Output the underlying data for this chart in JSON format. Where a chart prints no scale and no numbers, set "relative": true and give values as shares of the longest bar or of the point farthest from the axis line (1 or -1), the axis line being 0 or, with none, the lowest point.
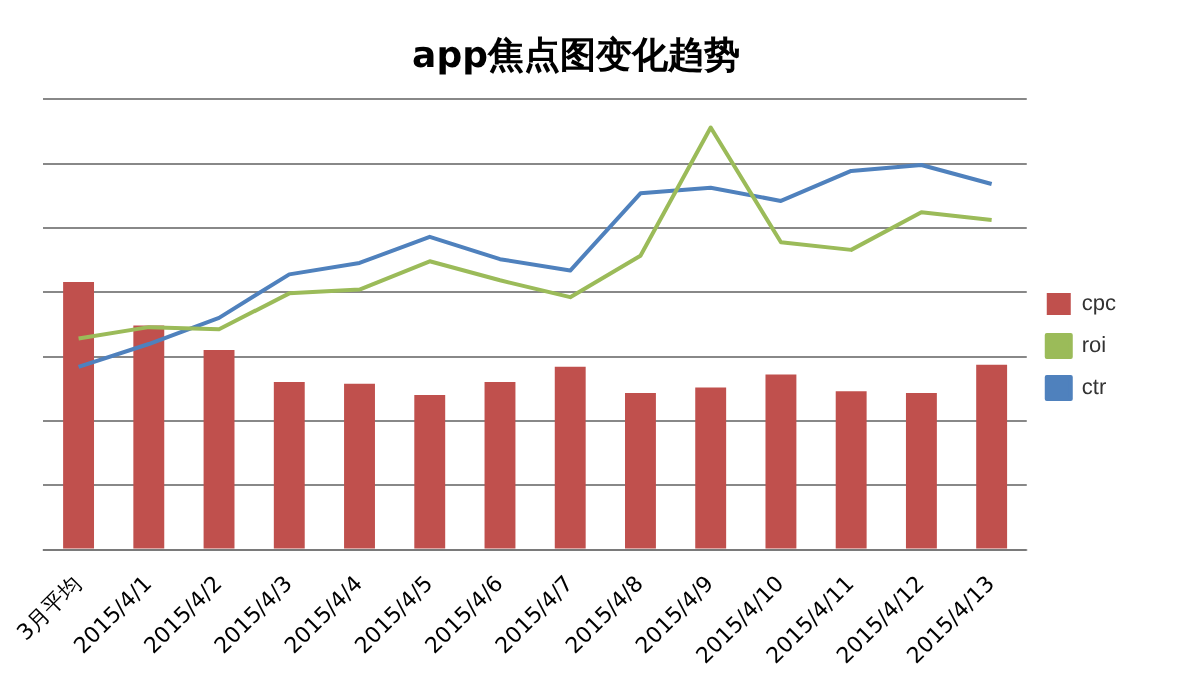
{
  "chart_data": {
    "type": "bar",
    "title": "app焦点图变化趋势",
    "relative": true,
    "grid": "y",
    "legend": "right",
    "marker": "none",
    "categories": [
      "3月平均",
      "2015/4/1",
      "2015/4/2",
      "2015/4/3",
      "2015/4/4",
      "2015/4/5",
      "2015/4/6",
      "2015/4/7",
      "2015/4/8",
      "2015/4/9",
      "2015/4/10",
      "2015/4/11",
      "2015/4/12",
      "2015/4/13"
    ],
    "series": [
      {
        "name": "cpc",
        "color": "#c0504d",
        "values": [
          0.634,
          0.531,
          0.473,
          0.397,
          0.393,
          0.366,
          0.397,
          0.433,
          0.371,
          0.384,
          0.415,
          0.375,
          0.371,
          0.438
        ]
      },
      {
        "name": "roi",
        "type": "line",
        "color": "#9bbb59",
        "values": [
          0.5,
          0.527,
          0.522,
          0.607,
          0.616,
          0.683,
          0.638,
          0.598,
          0.696,
          1,
          0.728,
          0.71,
          0.799,
          0.781
        ]
      },
      {
        "name": "ctr",
        "type": "line",
        "color": "#4f81bd",
        "values": [
          0.433,
          0.487,
          0.549,
          0.652,
          0.679,
          0.741,
          0.688,
          0.661,
          0.844,
          0.857,
          0.826,
          0.897,
          0.911,
          0.866
        ]
      }
    ]
  }
}
